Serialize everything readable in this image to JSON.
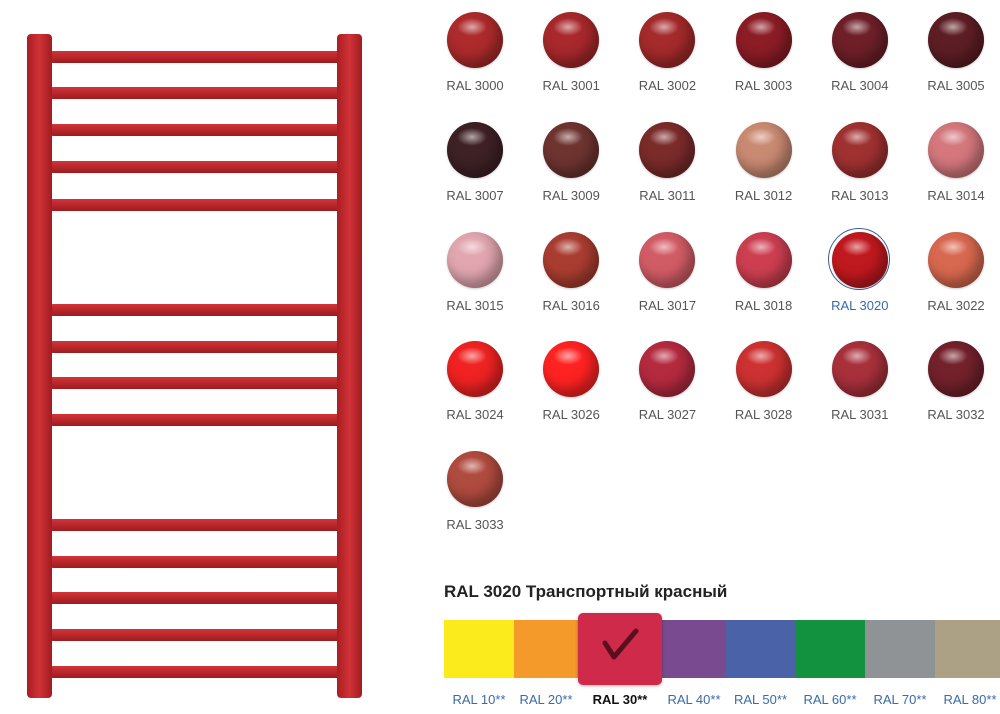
{
  "swatches": [
    {
      "label": "RAL 3000",
      "color": "#ad2b2c"
    },
    {
      "label": "RAL 3001",
      "color": "#a8282c"
    },
    {
      "label": "RAL 3002",
      "color": "#a42a2b"
    },
    {
      "label": "RAL 3003",
      "color": "#8c1c26"
    },
    {
      "label": "RAL 3004",
      "color": "#6e1f28"
    },
    {
      "label": "RAL 3005",
      "color": "#5c1e24"
    },
    {
      "label": "RAL 3007",
      "color": "#3e2125"
    },
    {
      "label": "RAL 3009",
      "color": "#6e3430"
    },
    {
      "label": "RAL 3011",
      "color": "#7a2b2a"
    },
    {
      "label": "RAL 3012",
      "color": "#c98a72"
    },
    {
      "label": "RAL 3013",
      "color": "#a03131"
    },
    {
      "label": "RAL 3014",
      "color": "#d4787d"
    },
    {
      "label": "RAL 3015",
      "color": "#e2a6b0"
    },
    {
      "label": "RAL 3016",
      "color": "#aa3d31"
    },
    {
      "label": "RAL 3017",
      "color": "#d25c66"
    },
    {
      "label": "RAL 3018",
      "color": "#cd3f50"
    },
    {
      "label": "RAL 3020",
      "color": "#c0191f",
      "selected": true
    },
    {
      "label": "RAL 3022",
      "color": "#d8684f"
    },
    {
      "label": "RAL 3024",
      "color": "#f02222"
    },
    {
      "label": "RAL 3026",
      "color": "#ff2222"
    },
    {
      "label": "RAL 3027",
      "color": "#b42a3f"
    },
    {
      "label": "RAL 3028",
      "color": "#cd3131"
    },
    {
      "label": "RAL 3031",
      "color": "#a8303b"
    },
    {
      "label": "RAL 3032",
      "color": "#73212b"
    },
    {
      "label": "RAL 3033",
      "color": "#b04b3f"
    }
  ],
  "selected_title": "RAL 3020 Транспортный красный",
  "tabs": [
    {
      "label": "RAL 10**",
      "color": "#fbea1c"
    },
    {
      "label": "RAL 20**",
      "color": "#f39a2a"
    },
    {
      "label": "RAL 30**",
      "color": "#cf2a4a",
      "selected": true
    },
    {
      "label": "RAL 40**",
      "color": "#7a4a90"
    },
    {
      "label": "RAL 50**",
      "color": "#4a62a8"
    },
    {
      "label": "RAL 60**",
      "color": "#12913e"
    },
    {
      "label": "RAL 70**",
      "color": "#8f9395"
    },
    {
      "label": "RAL 80**",
      "color": "#aca184"
    }
  ]
}
